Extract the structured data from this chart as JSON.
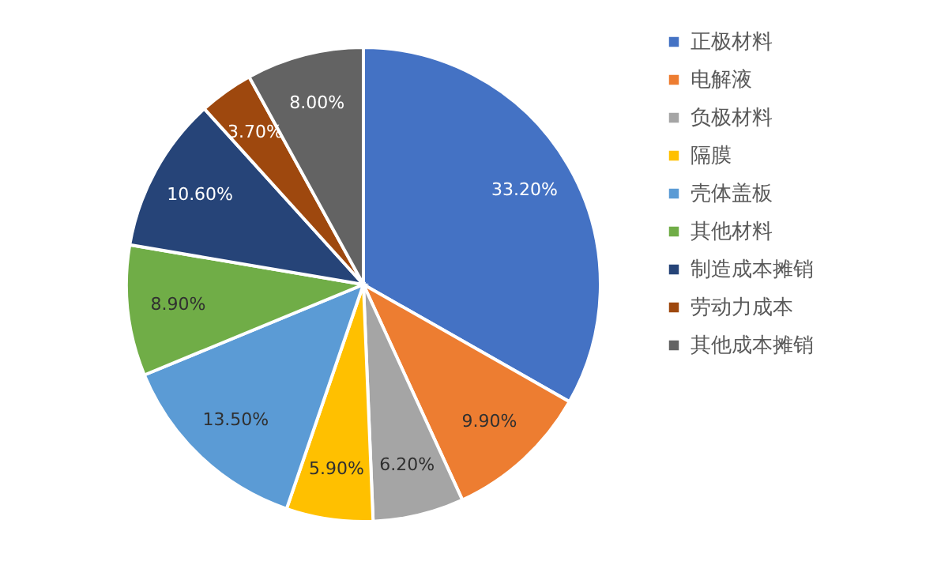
{
  "chart_data": {
    "type": "pie",
    "categories": [
      "正极材料",
      "电解液",
      "负极材料",
      "隔膜",
      "壳体盖板",
      "其他材料",
      "制造成本摊销",
      "劳动力成本",
      "其他成本摊销"
    ],
    "values": [
      33.2,
      9.9,
      6.2,
      5.9,
      13.5,
      8.9,
      10.6,
      3.7,
      8.0
    ],
    "colors": [
      "#4472c4",
      "#ed7d31",
      "#a5a5a5",
      "#ffc000",
      "#5b9bd5",
      "#70ad47",
      "#264478",
      "#9e480e",
      "#636363"
    ],
    "value_labels": [
      "33.20%",
      "9.90%",
      "6.20%",
      "5.90%",
      "13.50%",
      "8.90%",
      "10.60%",
      "3.70%",
      "8.00%"
    ],
    "legend": "right"
  }
}
